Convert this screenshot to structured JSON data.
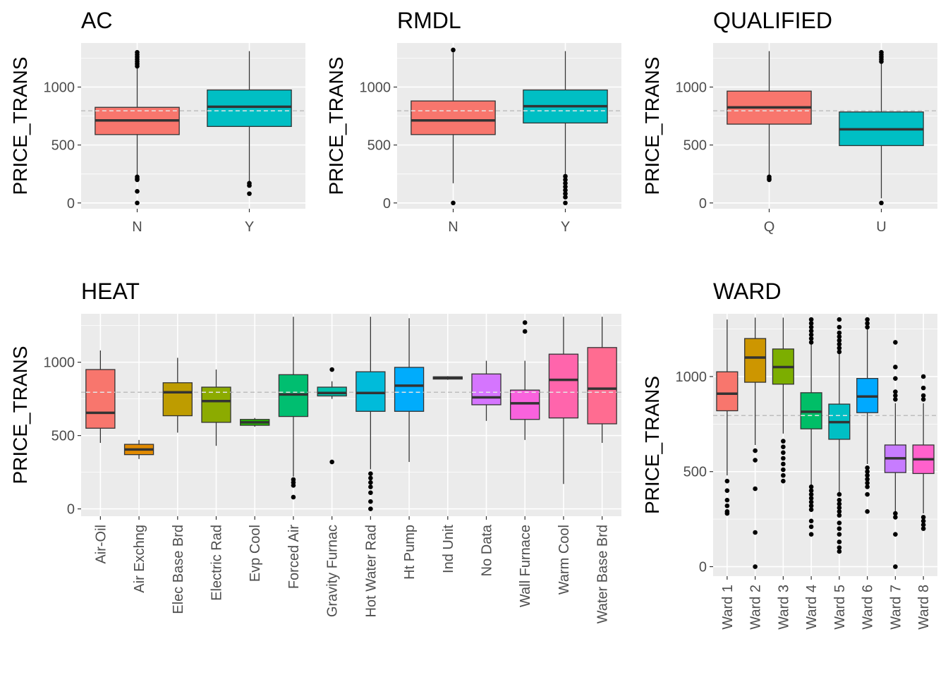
{
  "chart_data": [
    {
      "type": "box",
      "title": "AC",
      "xlabel": "",
      "ylabel": "PRICE_TRANS",
      "ylim": [
        -50,
        1380
      ],
      "yticks": [
        0,
        500,
        1000
      ],
      "reference_line": 795,
      "categories": [
        "N",
        "Y"
      ],
      "colors": [
        "#F8766D",
        "#00BFC4"
      ],
      "boxes": [
        {
          "q1": 590,
          "median": 712,
          "q3": 825,
          "whisker_low": 240,
          "whisker_high": 1170,
          "outliers": [
            0,
            100,
            200,
            210,
            225,
            1180,
            1200,
            1220,
            1240,
            1260,
            1280,
            1300
          ]
        },
        {
          "q1": 660,
          "median": 830,
          "q3": 975,
          "whisker_low": 180,
          "whisker_high": 1310,
          "outliers": [
            80,
            150,
            170
          ]
        }
      ]
    },
    {
      "type": "box",
      "title": "RMDL",
      "xlabel": "",
      "ylabel": "PRICE_TRANS",
      "ylim": [
        -50,
        1380
      ],
      "yticks": [
        0,
        500,
        1000
      ],
      "reference_line": 795,
      "categories": [
        "N",
        "Y"
      ],
      "colors": [
        "#F8766D",
        "#00BFC4"
      ],
      "boxes": [
        {
          "q1": 590,
          "median": 712,
          "q3": 880,
          "whisker_low": 170,
          "whisker_high": 1300,
          "outliers": [
            0,
            1320
          ]
        },
        {
          "q1": 690,
          "median": 835,
          "q3": 975,
          "whisker_low": 250,
          "whisker_high": 1310,
          "outliers": [
            0,
            50,
            80,
            110,
            140,
            170,
            200,
            230
          ]
        }
      ]
    },
    {
      "type": "box",
      "title": "QUALIFIED",
      "xlabel": "",
      "ylabel": "PRICE_TRANS",
      "ylim": [
        -50,
        1380
      ],
      "yticks": [
        0,
        500,
        1000
      ],
      "reference_line": 795,
      "categories": [
        "Q",
        "U"
      ],
      "colors": [
        "#F8766D",
        "#00BFC4"
      ],
      "boxes": [
        {
          "q1": 680,
          "median": 825,
          "q3": 965,
          "whisker_low": 240,
          "whisker_high": 1310,
          "outliers": [
            200,
            210,
            225
          ]
        },
        {
          "q1": 495,
          "median": 635,
          "q3": 785,
          "whisker_low": 40,
          "whisker_high": 1210,
          "outliers": [
            0,
            1220,
            1240,
            1260,
            1280,
            1300
          ]
        }
      ]
    },
    {
      "type": "box",
      "title": "HEAT",
      "xlabel": "",
      "ylabel": "PRICE_TRANS",
      "ylim": [
        -50,
        1330
      ],
      "yticks": [
        0,
        500,
        1000
      ],
      "reference_line": 795,
      "categories": [
        "Air-Oil",
        "Air Exchng",
        "Elec Base Brd",
        "Electric Rad",
        "Evp Cool",
        "Forced Air",
        "Gravity Furnac",
        "Hot Water Rad",
        "Ht Pump",
        "Ind Unit",
        "No Data",
        "Wall Furnace",
        "Warm Cool",
        "Water Base Brd"
      ],
      "colors": [
        "#F8766D",
        "#E18A00",
        "#BE9C00",
        "#8CAB00",
        "#24B700",
        "#00BE70",
        "#00C1AB",
        "#00BBDA",
        "#00ACFC",
        "#8B93FF",
        "#D575FE",
        "#F962DD",
        "#FF65AC",
        "#FF6C91"
      ],
      "boxes": [
        {
          "q1": 550,
          "median": 655,
          "q3": 950,
          "whisker_low": 450,
          "whisker_high": 1080,
          "outliers": []
        },
        {
          "q1": 370,
          "median": 405,
          "q3": 440,
          "whisker_low": 340,
          "whisker_high": 470,
          "outliers": []
        },
        {
          "q1": 635,
          "median": 795,
          "q3": 860,
          "whisker_low": 520,
          "whisker_high": 1030,
          "outliers": []
        },
        {
          "q1": 590,
          "median": 735,
          "q3": 830,
          "whisker_low": 430,
          "whisker_high": 950,
          "outliers": []
        },
        {
          "q1": 570,
          "median": 590,
          "q3": 610,
          "whisker_low": 560,
          "whisker_high": 620,
          "outliers": []
        },
        {
          "q1": 630,
          "median": 780,
          "q3": 915,
          "whisker_low": 220,
          "whisker_high": 1310,
          "outliers": [
            80,
            160,
            180,
            200
          ]
        },
        {
          "q1": 770,
          "median": 790,
          "q3": 830,
          "whisker_low": 750,
          "whisker_high": 870,
          "outliers": [
            320,
            950
          ]
        },
        {
          "q1": 665,
          "median": 790,
          "q3": 935,
          "whisker_low": 270,
          "whisker_high": 1310,
          "outliers": [
            0,
            50,
            110,
            150,
            180,
            210,
            240
          ]
        },
        {
          "q1": 665,
          "median": 840,
          "q3": 965,
          "whisker_low": 320,
          "whisker_high": 1300,
          "outliers": []
        },
        {
          "q1": 885,
          "median": 895,
          "q3": 900,
          "whisker_low": 880,
          "whisker_high": 905,
          "outliers": []
        },
        {
          "q1": 710,
          "median": 760,
          "q3": 920,
          "whisker_low": 600,
          "whisker_high": 1010,
          "outliers": []
        },
        {
          "q1": 610,
          "median": 720,
          "q3": 810,
          "whisker_low": 470,
          "whisker_high": 1010,
          "outliers": [
            1210,
            1270
          ]
        },
        {
          "q1": 620,
          "median": 880,
          "q3": 1055,
          "whisker_low": 170,
          "whisker_high": 1310,
          "outliers": []
        },
        {
          "q1": 580,
          "median": 820,
          "q3": 1100,
          "whisker_low": 450,
          "whisker_high": 1310,
          "outliers": []
        }
      ]
    },
    {
      "type": "box",
      "title": "WARD",
      "xlabel": "",
      "ylabel": "PRICE_TRANS",
      "ylim": [
        -50,
        1330
      ],
      "yticks": [
        0,
        500,
        1000
      ],
      "reference_line": 795,
      "categories": [
        "Ward 1",
        "Ward 2",
        "Ward 3",
        "Ward 4",
        "Ward 5",
        "Ward 6",
        "Ward 7",
        "Ward 8"
      ],
      "colors": [
        "#F8766D",
        "#CD9600",
        "#7CAE00",
        "#00BE67",
        "#00BFC4",
        "#00A9FF",
        "#C77CFF",
        "#FF61CC"
      ],
      "boxes": [
        {
          "q1": 820,
          "median": 910,
          "q3": 1025,
          "whisker_low": 480,
          "whisker_high": 1300,
          "outliers": [
            280,
            290,
            320,
            350,
            400,
            450
          ]
        },
        {
          "q1": 970,
          "median": 1100,
          "q3": 1200,
          "whisker_low": 640,
          "whisker_high": 1310,
          "outliers": [
            0,
            180,
            410,
            560,
            610
          ]
        },
        {
          "q1": 960,
          "median": 1050,
          "q3": 1145,
          "whisker_low": 700,
          "whisker_high": 1310,
          "outliers": [
            450,
            480,
            510,
            540,
            570,
            600,
            630,
            660
          ]
        },
        {
          "q1": 725,
          "median": 815,
          "q3": 915,
          "whisker_low": 430,
          "whisker_high": 1170,
          "outliers": [
            170,
            210,
            240,
            300,
            320,
            340,
            360,
            380,
            400,
            420,
            1180,
            1200,
            1220,
            1240,
            1260,
            1280,
            1300
          ]
        },
        {
          "q1": 670,
          "median": 760,
          "q3": 855,
          "whisker_low": 390,
          "whisker_high": 1120,
          "outliers": [
            80,
            100,
            130,
            170,
            200,
            230,
            270,
            290,
            310,
            330,
            350,
            380,
            1130,
            1150,
            1170,
            1190,
            1210,
            1230,
            1260,
            1300
          ]
        },
        {
          "q1": 810,
          "median": 895,
          "q3": 990,
          "whisker_low": 540,
          "whisker_high": 1250,
          "outliers": [
            290,
            380,
            420,
            440,
            460,
            480,
            500,
            520,
            1260,
            1280,
            1300
          ]
        },
        {
          "q1": 495,
          "median": 570,
          "q3": 640,
          "whisker_low": 290,
          "whisker_high": 860,
          "outliers": [
            0,
            170,
            260,
            280,
            880,
            900,
            920,
            990,
            1050,
            1180
          ]
        },
        {
          "q1": 490,
          "median": 565,
          "q3": 640,
          "whisker_low": 280,
          "whisker_high": 860,
          "outliers": [
            200,
            220,
            240,
            260,
            880,
            900,
            940,
            1000
          ]
        }
      ]
    }
  ]
}
